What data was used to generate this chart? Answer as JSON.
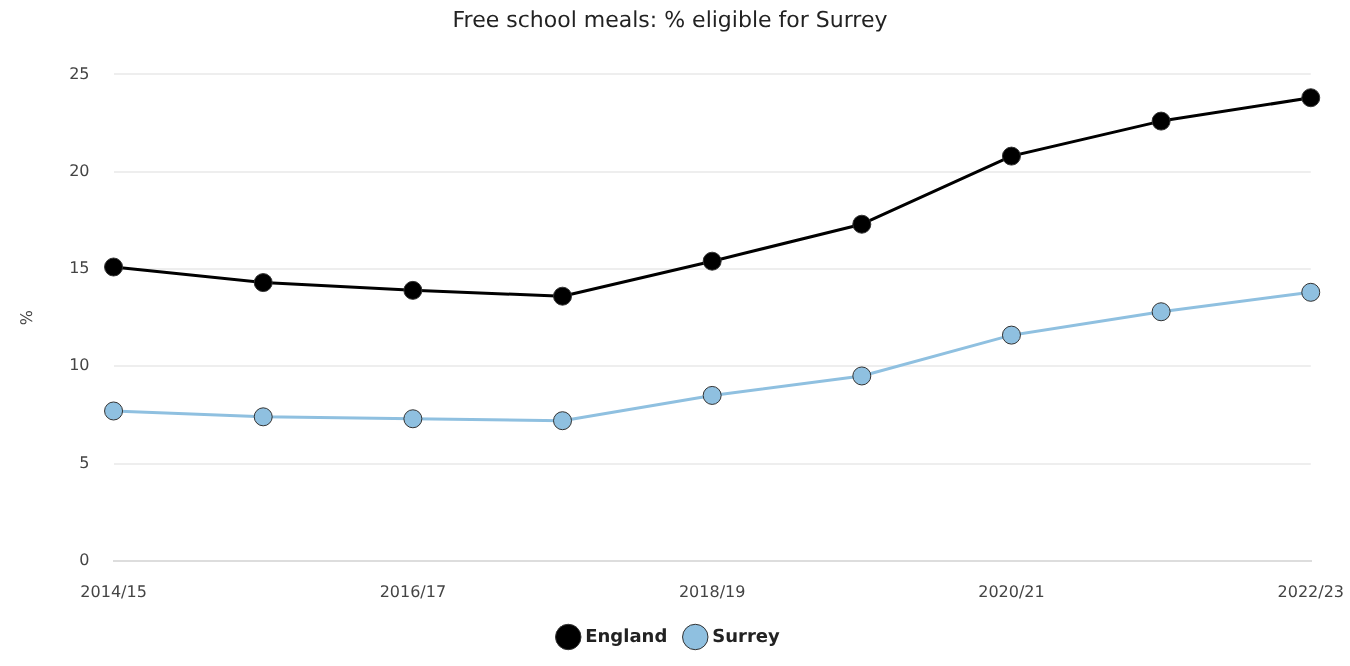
{
  "chart_data": {
    "type": "line",
    "title": "Free school meals: % eligible for Surrey",
    "ylabel": "%",
    "categories": [
      "2014/15",
      null,
      "2016/17",
      null,
      "2018/19",
      null,
      "2020/21",
      null,
      "2022/23"
    ],
    "series": [
      {
        "name": "England",
        "color": "#000000",
        "values": [
          15.1,
          14.3,
          13.9,
          13.6,
          15.4,
          17.3,
          20.8,
          22.6,
          23.8
        ]
      },
      {
        "name": "Surrey",
        "color": "#8fc0e0",
        "values": [
          7.7,
          7.4,
          7.3,
          7.2,
          8.5,
          9.5,
          11.6,
          12.8,
          13.8
        ]
      }
    ],
    "ylim": [
      0,
      25
    ],
    "yticks": [
      0,
      5,
      10,
      15,
      20,
      25
    ],
    "grid": "y",
    "legend": "bottom",
    "marker": "circle",
    "line_style": "solid"
  }
}
